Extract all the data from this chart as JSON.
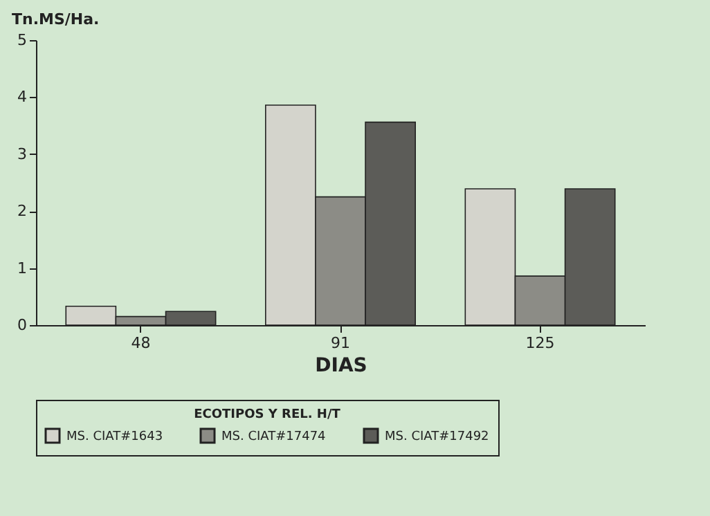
{
  "chart_data": {
    "type": "bar",
    "xlabel": "DIAS",
    "ylabel": "Tn.MS/Ha.",
    "legend_title": "ECOTIPOS Y REL. H/T",
    "categories": [
      "48",
      "91",
      "125"
    ],
    "series": [
      {
        "name": "MS. CIAT#1643",
        "color": "#d4d4cc",
        "values": [
          0.33,
          3.86,
          2.39
        ]
      },
      {
        "name": "MS. CIAT#17474",
        "color": "#8c8c86",
        "values": [
          0.15,
          2.25,
          0.86
        ]
      },
      {
        "name": "MS. CIAT#17492",
        "color": "#5c5c58",
        "values": [
          0.24,
          3.56,
          2.39
        ]
      }
    ],
    "ylim": [
      0,
      5
    ],
    "yticks": [
      0,
      1,
      2,
      3,
      4,
      5
    ],
    "grid": false,
    "legend": "bottom"
  }
}
